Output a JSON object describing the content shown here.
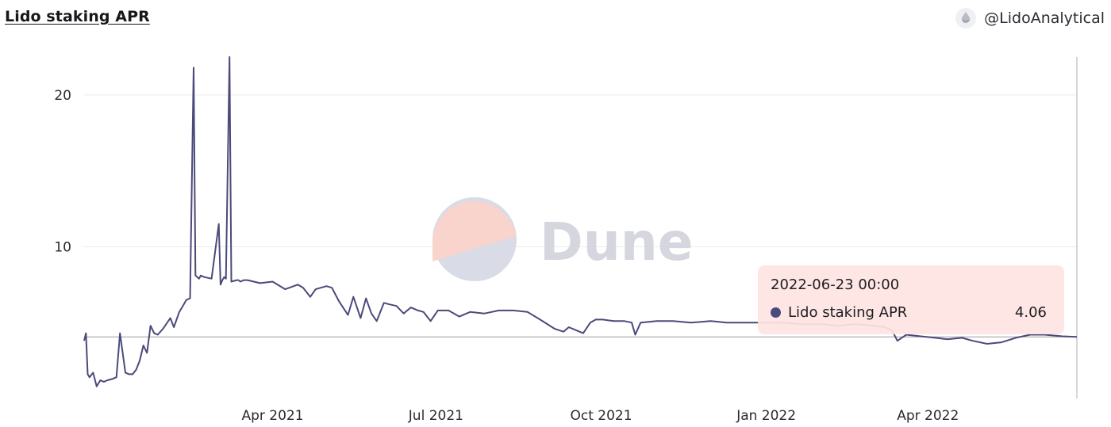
{
  "header": {
    "title": "Lido staking APR",
    "author": "@LidoAnalytical",
    "author_icon": "lido-drop-icon"
  },
  "watermark": {
    "text": "Dune"
  },
  "tooltip": {
    "date": "2022-06-23 00:00",
    "series_name": "Lido staking APR",
    "value": "4.06"
  },
  "colors": {
    "line": "#4b4a7a",
    "grid": "#ebebef",
    "tooltip_bg": "#fee4e2",
    "watermark_top": "#f9d4cc",
    "watermark_bottom": "#d9dbe6"
  },
  "chart_data": {
    "type": "line",
    "title": "Lido staking APR",
    "xlabel": "",
    "ylabel": "",
    "ylim": [
      0,
      22.5
    ],
    "xlim": [
      "2020-12-17",
      "2022-06-23"
    ],
    "yticks": [
      10,
      20
    ],
    "xticks": [
      {
        "date": "2021-04-01",
        "label": "Apr 2021"
      },
      {
        "date": "2021-07-01",
        "label": "Jul 2021"
      },
      {
        "date": "2021-10-01",
        "label": "Oct 2021"
      },
      {
        "date": "2022-01-01",
        "label": "Jan 2022"
      },
      {
        "date": "2022-04-01",
        "label": "Apr 2022"
      }
    ],
    "grid": true,
    "crosshair_y": 4.06,
    "series": [
      {
        "name": "Lido staking APR",
        "x": [
          "2020-12-17",
          "2020-12-18",
          "2020-12-19",
          "2020-12-20",
          "2020-12-22",
          "2020-12-24",
          "2020-12-26",
          "2020-12-28",
          "2020-12-30",
          "2021-01-02",
          "2021-01-04",
          "2021-01-06",
          "2021-01-09",
          "2021-01-11",
          "2021-01-13",
          "2021-01-15",
          "2021-01-17",
          "2021-01-19",
          "2021-01-21",
          "2021-01-23",
          "2021-01-25",
          "2021-01-27",
          "2021-01-30",
          "2021-02-03",
          "2021-02-05",
          "2021-02-08",
          "2021-02-10",
          "2021-02-12",
          "2021-02-14",
          "2021-02-16",
          "2021-02-17",
          "2021-02-19",
          "2021-02-20",
          "2021-02-22",
          "2021-02-26",
          "2021-03-02",
          "2021-03-03",
          "2021-03-04",
          "2021-03-05",
          "2021-03-06",
          "2021-03-08",
          "2021-03-09",
          "2021-03-12",
          "2021-03-13",
          "2021-03-14",
          "2021-03-16",
          "2021-03-18",
          "2021-03-25",
          "2021-04-01",
          "2021-04-08",
          "2021-04-15",
          "2021-04-18",
          "2021-04-22",
          "2021-04-25",
          "2021-05-01",
          "2021-05-04",
          "2021-05-08",
          "2021-05-13",
          "2021-05-16",
          "2021-05-20",
          "2021-05-23",
          "2021-05-26",
          "2021-05-29",
          "2021-06-02",
          "2021-06-05",
          "2021-06-09",
          "2021-06-13",
          "2021-06-17",
          "2021-06-21",
          "2021-06-24",
          "2021-06-28",
          "2021-07-02",
          "2021-07-08",
          "2021-07-14",
          "2021-07-20",
          "2021-07-28",
          "2021-08-05",
          "2021-08-13",
          "2021-08-21",
          "2021-08-28",
          "2021-09-05",
          "2021-09-10",
          "2021-09-13",
          "2021-09-17",
          "2021-09-21",
          "2021-09-25",
          "2021-09-28",
          "2021-10-02",
          "2021-10-08",
          "2021-10-14",
          "2021-10-18",
          "2021-10-20",
          "2021-10-23",
          "2021-11-01",
          "2021-11-10",
          "2021-11-20",
          "2021-12-01",
          "2021-12-10",
          "2021-12-20",
          "2022-01-01",
          "2022-01-10",
          "2022-01-20",
          "2022-02-01",
          "2022-02-10",
          "2022-02-20",
          "2022-03-01",
          "2022-03-08",
          "2022-03-12",
          "2022-03-15",
          "2022-03-20",
          "2022-03-28",
          "2022-04-05",
          "2022-04-12",
          "2022-04-20",
          "2022-04-26",
          "2022-05-04",
          "2022-05-12",
          "2022-05-20",
          "2022-05-28",
          "2022-06-05",
          "2022-06-15",
          "2022-06-23"
        ],
        "y": [
          3.8,
          4.3,
          1.6,
          1.4,
          1.7,
          0.8,
          1.2,
          1.1,
          1.2,
          1.3,
          1.4,
          4.3,
          1.7,
          1.6,
          1.6,
          1.9,
          2.5,
          3.5,
          3.0,
          4.8,
          4.3,
          4.2,
          4.6,
          5.3,
          4.7,
          5.7,
          6.1,
          6.5,
          6.6,
          21.8,
          8.1,
          7.9,
          8.1,
          8.0,
          7.9,
          11.5,
          7.5,
          7.8,
          8.0,
          7.9,
          22.5,
          7.7,
          7.8,
          7.8,
          7.7,
          7.8,
          7.8,
          7.6,
          7.7,
          7.2,
          7.5,
          7.3,
          6.7,
          7.2,
          7.4,
          7.3,
          6.4,
          5.5,
          6.7,
          5.3,
          6.6,
          5.6,
          5.1,
          6.3,
          6.2,
          6.1,
          5.6,
          6.0,
          5.8,
          5.7,
          5.1,
          5.8,
          5.8,
          5.4,
          5.7,
          5.6,
          5.8,
          5.8,
          5.7,
          5.2,
          4.6,
          4.4,
          4.7,
          4.5,
          4.3,
          5.0,
          5.2,
          5.2,
          5.1,
          5.1,
          5.0,
          4.2,
          5.0,
          5.1,
          5.1,
          5.0,
          5.1,
          5.0,
          5.0,
          5.0,
          5.0,
          4.9,
          4.9,
          4.8,
          4.9,
          4.8,
          4.7,
          4.5,
          3.8,
          4.2,
          4.1,
          4.0,
          3.9,
          4.0,
          3.8,
          3.6,
          3.7,
          4.0,
          4.2,
          4.2,
          4.1,
          4.06
        ]
      }
    ]
  }
}
